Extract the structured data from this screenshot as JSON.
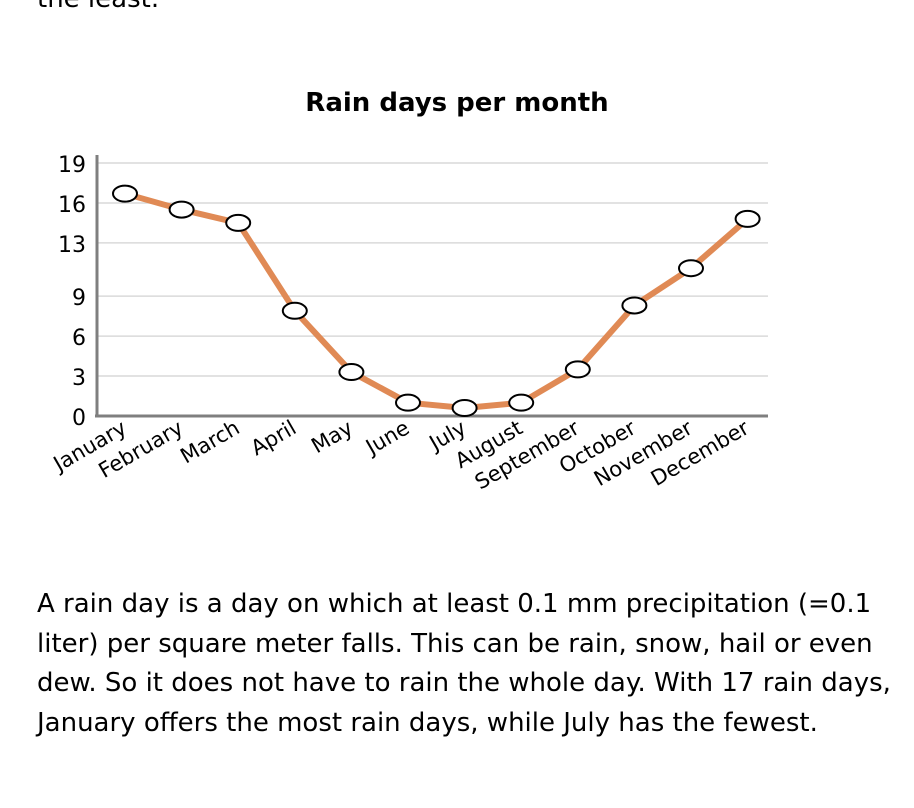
{
  "intro_tail": "the least.",
  "description": "A rain day is a day on which at least 0.1 mm precipitation (=0.1 liter) per square meter falls. This can be rain, snow, hail or even dew. So it does not have to rain the whole day. With 17 rain days, January offers the most rain days, while July has the fewest.",
  "colors": {
    "line": "#e08a55",
    "grid": "#d9d9d9",
    "axis": "#7f7f7f",
    "marker_fill": "#ffffff",
    "marker_stroke": "#000000"
  },
  "chart_data": {
    "type": "line",
    "title": "Rain days per month",
    "xlabel": "",
    "ylabel": "",
    "categories": [
      "January",
      "February",
      "March",
      "April",
      "May",
      "June",
      "July",
      "August",
      "September",
      "October",
      "November",
      "December"
    ],
    "values": [
      16.7,
      15.5,
      14.5,
      7.9,
      3.3,
      1.0,
      0.6,
      1.0,
      3.5,
      8.3,
      11.1,
      14.8
    ],
    "yticks": [
      0,
      3,
      6,
      9,
      13,
      16,
      19
    ],
    "ylim": [
      0,
      19
    ],
    "grid": true,
    "legend": "none"
  }
}
